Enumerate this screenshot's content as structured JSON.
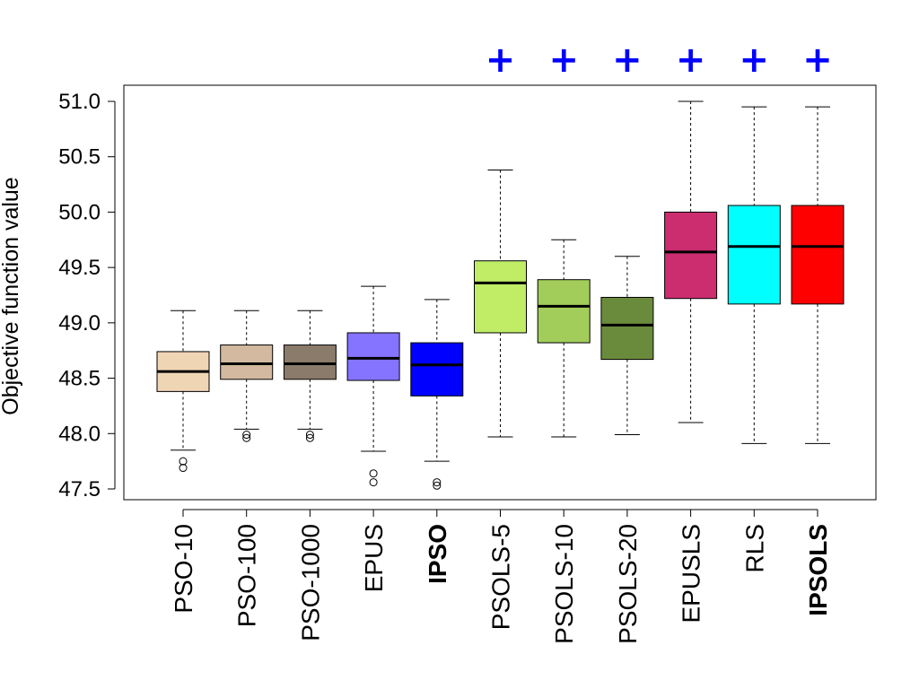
{
  "chart_data": {
    "type": "boxplot",
    "ylabel": "Objective function value",
    "ylim": [
      47.4,
      51.15
    ],
    "yticks": [
      "47.5",
      "48.0",
      "48.5",
      "49.0",
      "49.5",
      "50.0",
      "50.5",
      "51.0"
    ],
    "marker_symbol": "+",
    "marker_color": "#0000ff",
    "boxes": [
      {
        "label": "PSO-10",
        "color": "#f0d5b5",
        "bold": false,
        "whisker_low": 47.85,
        "q1": 48.38,
        "median": 48.56,
        "q3": 48.74,
        "whisker_high": 49.11,
        "outliers": [
          47.75,
          47.69
        ],
        "marked": false
      },
      {
        "label": "PSO-100",
        "color": "#d2b9a0",
        "bold": false,
        "whisker_low": 48.04,
        "q1": 48.49,
        "median": 48.63,
        "q3": 48.8,
        "whisker_high": 49.11,
        "outliers": [
          47.99,
          47.96
        ],
        "marked": false
      },
      {
        "label": "PSO-1000",
        "color": "#8b7b6a",
        "bold": false,
        "whisker_low": 48.04,
        "q1": 48.49,
        "median": 48.63,
        "q3": 48.8,
        "whisker_high": 49.11,
        "outliers": [
          47.99,
          47.96
        ],
        "marked": false
      },
      {
        "label": "EPUS",
        "color": "#8474ff",
        "bold": false,
        "whisker_low": 47.84,
        "q1": 48.48,
        "median": 48.68,
        "q3": 48.91,
        "whisker_high": 49.33,
        "outliers": [
          47.64,
          47.56
        ],
        "marked": false
      },
      {
        "label": "IPSO",
        "color": "#0000ff",
        "bold": true,
        "whisker_low": 47.75,
        "q1": 48.34,
        "median": 48.62,
        "q3": 48.82,
        "whisker_high": 49.21,
        "outliers": [
          47.56,
          47.53
        ],
        "marked": false
      },
      {
        "label": "PSOLS-5",
        "color": "#c0ec66",
        "bold": false,
        "whisker_low": 47.97,
        "q1": 48.91,
        "median": 49.36,
        "q3": 49.56,
        "whisker_high": 50.38,
        "outliers": [],
        "marked": true
      },
      {
        "label": "PSOLS-10",
        "color": "#a2cd5a",
        "bold": false,
        "whisker_low": 47.97,
        "q1": 48.82,
        "median": 49.15,
        "q3": 49.39,
        "whisker_high": 49.75,
        "outliers": [],
        "marked": true
      },
      {
        "label": "PSOLS-20",
        "color": "#6b8b3c",
        "bold": false,
        "whisker_low": 47.99,
        "q1": 48.67,
        "median": 48.98,
        "q3": 49.23,
        "whisker_high": 49.6,
        "outliers": [],
        "marked": true
      },
      {
        "label": "EPUSLS",
        "color": "#cc2d6f",
        "bold": false,
        "whisker_low": 48.1,
        "q1": 49.22,
        "median": 49.64,
        "q3": 50.0,
        "whisker_high": 51.0,
        "outliers": [],
        "marked": true
      },
      {
        "label": "RLS",
        "color": "#00ffff",
        "bold": false,
        "whisker_low": 47.91,
        "q1": 49.17,
        "median": 49.69,
        "q3": 50.06,
        "whisker_high": 50.95,
        "outliers": [],
        "marked": true
      },
      {
        "label": "IPSOLS",
        "color": "#ff0000",
        "bold": true,
        "whisker_low": 47.91,
        "q1": 49.17,
        "median": 49.69,
        "q3": 50.06,
        "whisker_high": 50.95,
        "outliers": [],
        "marked": true
      }
    ]
  }
}
